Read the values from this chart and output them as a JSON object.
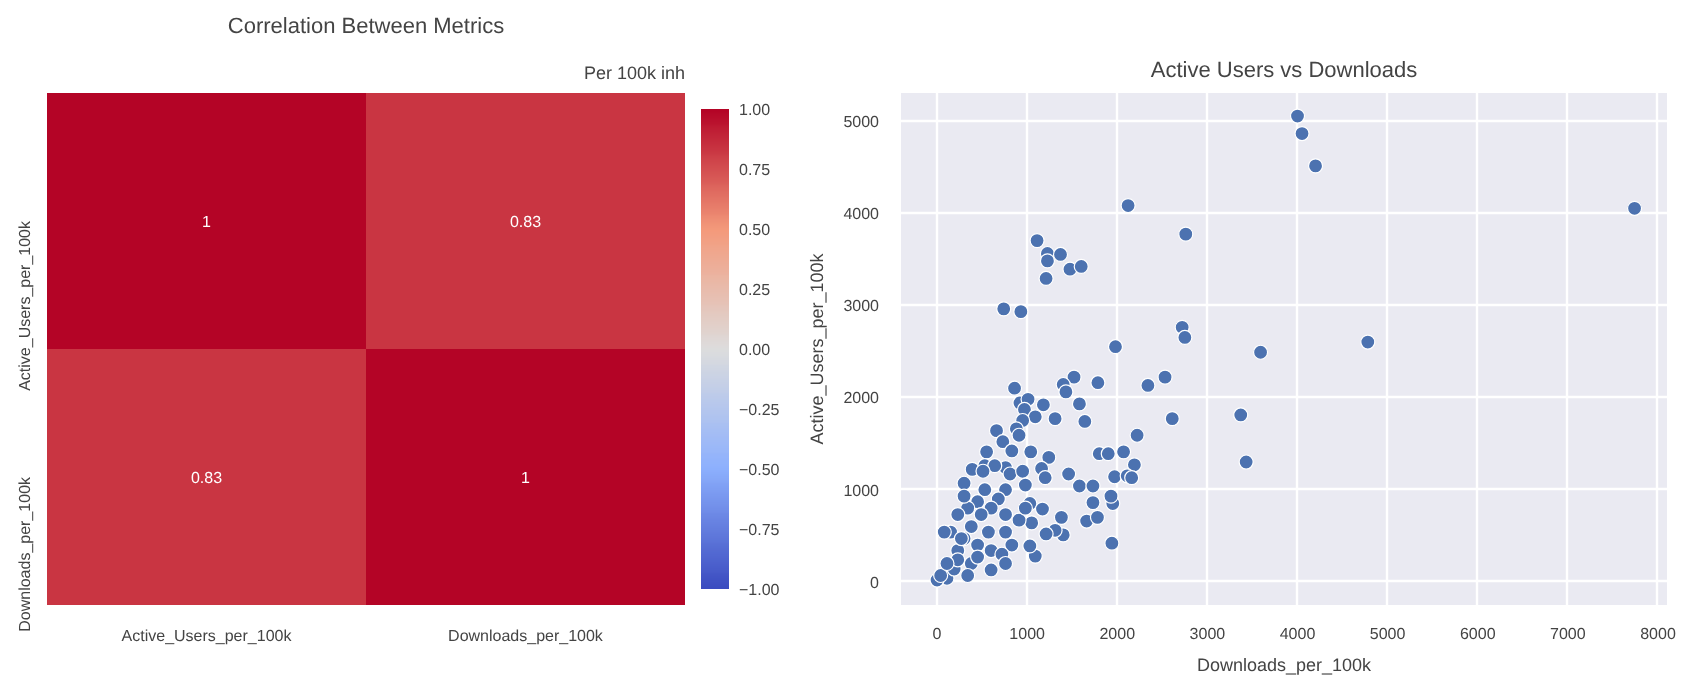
{
  "chart_data": [
    {
      "type": "heatmap",
      "title": "Correlation Between Metrics",
      "annotations": [
        "Per 100k inh"
      ],
      "categories": [
        "Active_Users_per_100k",
        "Downloads_per_100k"
      ],
      "y_categories": [
        "Active_Users_per_100k",
        "Downloads_per_100k"
      ],
      "cells": [
        [
          1,
          0.83
        ],
        [
          0.83,
          1
        ]
      ],
      "data_labels": true,
      "clim": [
        -1,
        1
      ],
      "cticks": [
        {
          "value": -1,
          "label": "−1.00"
        },
        {
          "value": -0.75,
          "label": "−0.75"
        },
        {
          "value": -0.5,
          "label": "−0.50"
        },
        {
          "value": -0.25,
          "label": "−0.25"
        },
        {
          "value": 0,
          "label": "0.00"
        },
        {
          "value": 0.25,
          "label": "0.25"
        },
        {
          "value": 0.5,
          "label": "0.50"
        },
        {
          "value": 0.75,
          "label": "0.75"
        },
        {
          "value": 1,
          "label": "1.00"
        }
      ]
    },
    {
      "type": "scatter",
      "title": "Active Users vs Downloads",
      "xlabel": "Downloads_per_100k",
      "ylabel": "Active_Users_per_100k",
      "xlim": [
        -400,
        8100
      ],
      "ylim": [
        -250,
        5300
      ],
      "xticks": [
        0,
        1000,
        2000,
        3000,
        4000,
        5000,
        6000,
        7000,
        8000
      ],
      "yticks": [
        0,
        1000,
        2000,
        3000,
        4000,
        5000
      ],
      "grid": true,
      "marker": "circle",
      "series": [
        {
          "color": "#4c72b0",
          "x": [
            4000,
            4050,
            4200,
            7740,
            2120,
            2760,
            1110,
            1225,
            1225,
            1370,
            1210,
            1475,
            1600,
            740,
            930,
            2720,
            2750,
            1980,
            3590,
            4780,
            1520,
            1400,
            1430,
            1785,
            2340,
            2530,
            860,
            1580,
            1640,
            2610,
            3370,
            3430,
            2220,
            920,
            1010,
            970,
            1180,
            1090,
            1310,
            950,
            660,
            880,
            910,
            730,
            550,
            830,
            1040,
            1240,
            1800,
            1900,
            2070,
            2190,
            1460,
            1970,
            2110,
            2160,
            1580,
            1730,
            1730,
            1950,
            1930,
            1380,
            1660,
            1780,
            1400,
            1310,
            1210,
            1940,
            1090,
            1030,
            1030,
            1170,
            1050,
            760,
            1160,
            530,
            390,
            300,
            640,
            510,
            810,
            950,
            1200,
            980,
            760,
            680,
            530,
            450,
            340,
            230,
            600,
            760,
            910,
            380,
            570,
            760,
            830,
            600,
            450,
            300,
            150,
            80,
            230,
            380,
            600,
            340,
            110,
            0,
            40,
            190,
            450,
            720,
            230,
            110,
            270,
            490,
            300,
            980,
            760
          ],
          "values": [
            5050,
            4860,
            4510,
            4050,
            4080,
            3770,
            3700,
            3560,
            3480,
            3550,
            3290,
            3390,
            3420,
            2960,
            2930,
            2760,
            2650,
            2550,
            2490,
            2600,
            2220,
            2140,
            2060,
            2160,
            2130,
            2220,
            2100,
            1930,
            1740,
            1770,
            1810,
            1300,
            1590,
            1940,
            1980,
            1870,
            1920,
            1790,
            1770,
            1750,
            1640,
            1660,
            1590,
            1520,
            1410,
            1420,
            1410,
            1350,
            1390,
            1390,
            1410,
            1270,
            1170,
            1140,
            1150,
            1130,
            1040,
            1040,
            860,
            850,
            930,
            700,
            660,
            700,
            510,
            560,
            520,
            420,
            280,
            390,
            850,
            790,
            640,
            1240,
            1230,
            1260,
            1220,
            1070,
            1260,
            1200,
            1170,
            1200,
            1130,
            1050,
            1000,
            900,
            1000,
            870,
            800,
            730,
            800,
            730,
            670,
            600,
            540,
            540,
            400,
            340,
            400,
            470,
            540,
            540,
            340,
            200,
            130,
            70,
            40,
            20,
            70,
            140,
            270,
            300,
            240,
            200,
            470,
            730,
            930,
            800,
            200
          ]
        }
      ]
    }
  ]
}
